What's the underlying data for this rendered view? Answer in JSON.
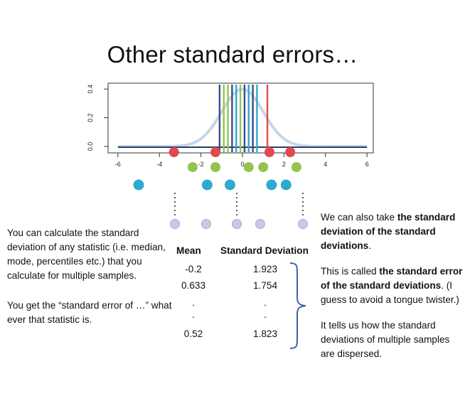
{
  "slide": {
    "title": "Other standard errors…"
  },
  "plot": {
    "y_ticks": [
      "0.0",
      "0.2",
      "0.4"
    ],
    "x_ticks": [
      "-6",
      "-4",
      "-2",
      "0",
      "2",
      "4",
      "6"
    ],
    "colors": {
      "curve": "#c5d8ea",
      "red": "#e0494f",
      "green": "#93c452",
      "blue": "#2fa9d0",
      "lavender": "#d4c2e8",
      "navy": "#3e4b87"
    },
    "red_dots_x": [
      -3.3,
      -1.3,
      1.3,
      2.3
    ],
    "green_dots_x": [
      -2.4,
      -1.3,
      0.3,
      1.0,
      2.6
    ],
    "blue_dots_x": [
      -5.0,
      -1.7,
      -0.6,
      1.4,
      2.1
    ],
    "vertical_lines": [
      {
        "x": -1.1,
        "color": "navy"
      },
      {
        "x": -0.9,
        "color": "green"
      },
      {
        "x": -0.7,
        "color": "green"
      },
      {
        "x": -0.5,
        "color": "navy"
      },
      {
        "x": -0.3,
        "color": "blue"
      },
      {
        "x": -0.1,
        "color": "green"
      },
      {
        "x": 0.1,
        "color": "navy"
      },
      {
        "x": 0.3,
        "color": "blue"
      },
      {
        "x": 0.5,
        "color": "navy"
      },
      {
        "x": 0.7,
        "color": "blue"
      },
      {
        "x": 1.2,
        "color": "red"
      }
    ]
  },
  "left_text": {
    "p1": "You can calculate the standard deviation of any statistic (i.e. median, mode, percentiles etc.) that you calculate for multiple samples.",
    "p2": "You get the “standard error of …” what ever that statistic is."
  },
  "table": {
    "headers": {
      "mean": "Mean",
      "sd": "Standard Deviation"
    },
    "rows": [
      {
        "mean": "-0.2",
        "sd": "1.923"
      },
      {
        "mean": "0.633",
        "sd": "1.754"
      },
      {
        "mean": ".",
        "sd": "."
      },
      {
        "mean": ".",
        "sd": "."
      },
      {
        "mean": "0.52",
        "sd": "1.823"
      }
    ]
  },
  "right_text": {
    "p1_a": "We can also take ",
    "p1_b": "the standard deviation of the standard deviations",
    "p1_c": ".",
    "p2_a": "This is called ",
    "p2_b": "the standard error of the standard deviations",
    "p2_c": ". (I guess to avoid a tongue twister.)",
    "p3": "It tells us how the standard deviations of multiple samples are dispersed."
  }
}
